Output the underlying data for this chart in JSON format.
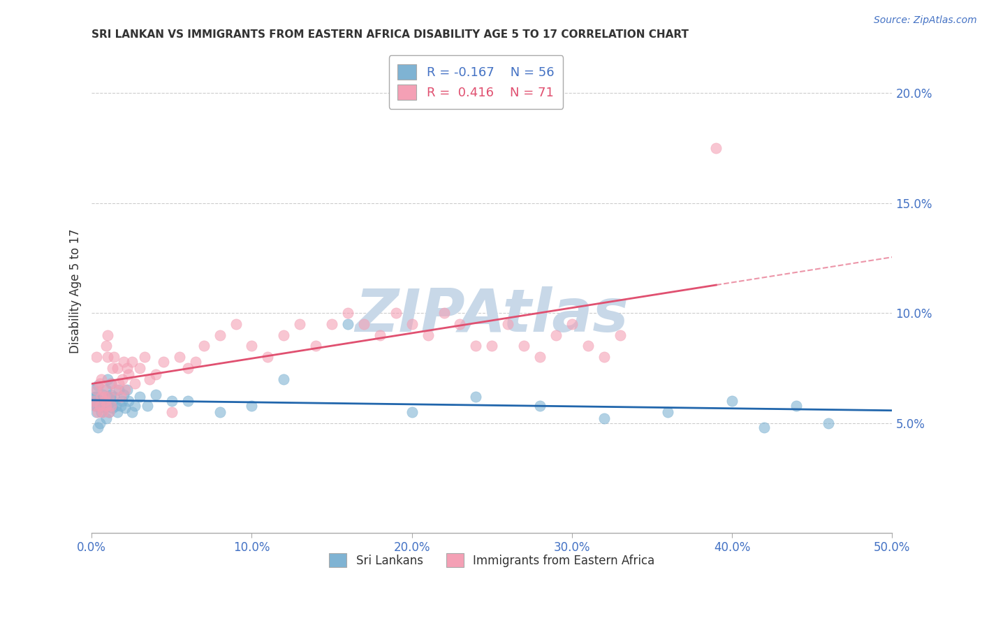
{
  "title": "SRI LANKAN VS IMMIGRANTS FROM EASTERN AFRICA DISABILITY AGE 5 TO 17 CORRELATION CHART",
  "source": "Source: ZipAtlas.com",
  "ylabel": "Disability Age 5 to 17",
  "xlim": [
    0.0,
    0.5
  ],
  "ylim": [
    0.0,
    0.22
  ],
  "yticks": [
    0.05,
    0.1,
    0.15,
    0.2
  ],
  "ytick_labels": [
    "5.0%",
    "10.0%",
    "15.0%",
    "20.0%"
  ],
  "xticks": [
    0.0,
    0.1,
    0.2,
    0.3,
    0.4,
    0.5
  ],
  "xtick_labels": [
    "0.0%",
    "10.0%",
    "20.0%",
    "30.0%",
    "40.0%",
    "50.0%"
  ],
  "legend_R1": "-0.167",
  "legend_N1": "56",
  "legend_R2": "0.416",
  "legend_N2": "71",
  "blue_color": "#7fb3d3",
  "blue_line_color": "#2166ac",
  "pink_color": "#f4a0b5",
  "pink_line_color": "#e05070",
  "pink_dash_color": "#e8a0b0",
  "watermark": "ZIPAtlas",
  "watermark_color": "#c8d8e8",
  "tick_color": "#4472c4",
  "title_color": "#333333",
  "blue_scatter_x": [
    0.001,
    0.002,
    0.003,
    0.004,
    0.005,
    0.006,
    0.007,
    0.007,
    0.008,
    0.008,
    0.009,
    0.009,
    0.01,
    0.01,
    0.011,
    0.011,
    0.012,
    0.012,
    0.013,
    0.013,
    0.014,
    0.015,
    0.016,
    0.017,
    0.018,
    0.019,
    0.02,
    0.021,
    0.022,
    0.023,
    0.025,
    0.027,
    0.03,
    0.035,
    0.04,
    0.05,
    0.06,
    0.08,
    0.1,
    0.12,
    0.16,
    0.2,
    0.24,
    0.28,
    0.32,
    0.36,
    0.4,
    0.42,
    0.44,
    0.46,
    0.001,
    0.002,
    0.003,
    0.003,
    0.004,
    0.005
  ],
  "blue_scatter_y": [
    0.065,
    0.062,
    0.058,
    0.067,
    0.06,
    0.055,
    0.063,
    0.058,
    0.06,
    0.057,
    0.065,
    0.052,
    0.07,
    0.058,
    0.062,
    0.055,
    0.063,
    0.068,
    0.057,
    0.06,
    0.062,
    0.058,
    0.055,
    0.065,
    0.058,
    0.06,
    0.063,
    0.057,
    0.065,
    0.06,
    0.055,
    0.058,
    0.062,
    0.058,
    0.063,
    0.06,
    0.06,
    0.055,
    0.058,
    0.07,
    0.095,
    0.055,
    0.062,
    0.058,
    0.052,
    0.055,
    0.06,
    0.048,
    0.058,
    0.05,
    0.06,
    0.058,
    0.062,
    0.055,
    0.048,
    0.05
  ],
  "pink_scatter_x": [
    0.001,
    0.002,
    0.003,
    0.003,
    0.004,
    0.005,
    0.005,
    0.006,
    0.006,
    0.007,
    0.007,
    0.008,
    0.008,
    0.009,
    0.009,
    0.01,
    0.01,
    0.011,
    0.011,
    0.012,
    0.012,
    0.013,
    0.014,
    0.015,
    0.016,
    0.017,
    0.018,
    0.019,
    0.02,
    0.021,
    0.022,
    0.023,
    0.025,
    0.027,
    0.03,
    0.033,
    0.036,
    0.04,
    0.045,
    0.05,
    0.055,
    0.06,
    0.065,
    0.07,
    0.08,
    0.09,
    0.1,
    0.11,
    0.12,
    0.13,
    0.14,
    0.15,
    0.16,
    0.17,
    0.18,
    0.19,
    0.2,
    0.21,
    0.22,
    0.23,
    0.24,
    0.25,
    0.26,
    0.27,
    0.28,
    0.29,
    0.3,
    0.31,
    0.32,
    0.33,
    0.39
  ],
  "pink_scatter_y": [
    0.06,
    0.058,
    0.065,
    0.08,
    0.055,
    0.068,
    0.058,
    0.062,
    0.07,
    0.055,
    0.065,
    0.06,
    0.062,
    0.085,
    0.058,
    0.09,
    0.08,
    0.055,
    0.062,
    0.068,
    0.058,
    0.075,
    0.08,
    0.065,
    0.075,
    0.068,
    0.062,
    0.07,
    0.078,
    0.065,
    0.075,
    0.072,
    0.078,
    0.068,
    0.075,
    0.08,
    0.07,
    0.072,
    0.078,
    0.055,
    0.08,
    0.075,
    0.078,
    0.085,
    0.09,
    0.095,
    0.085,
    0.08,
    0.09,
    0.095,
    0.085,
    0.095,
    0.1,
    0.095,
    0.09,
    0.1,
    0.095,
    0.09,
    0.1,
    0.095,
    0.085,
    0.085,
    0.095,
    0.085,
    0.08,
    0.09,
    0.095,
    0.085,
    0.08,
    0.09,
    0.175
  ]
}
